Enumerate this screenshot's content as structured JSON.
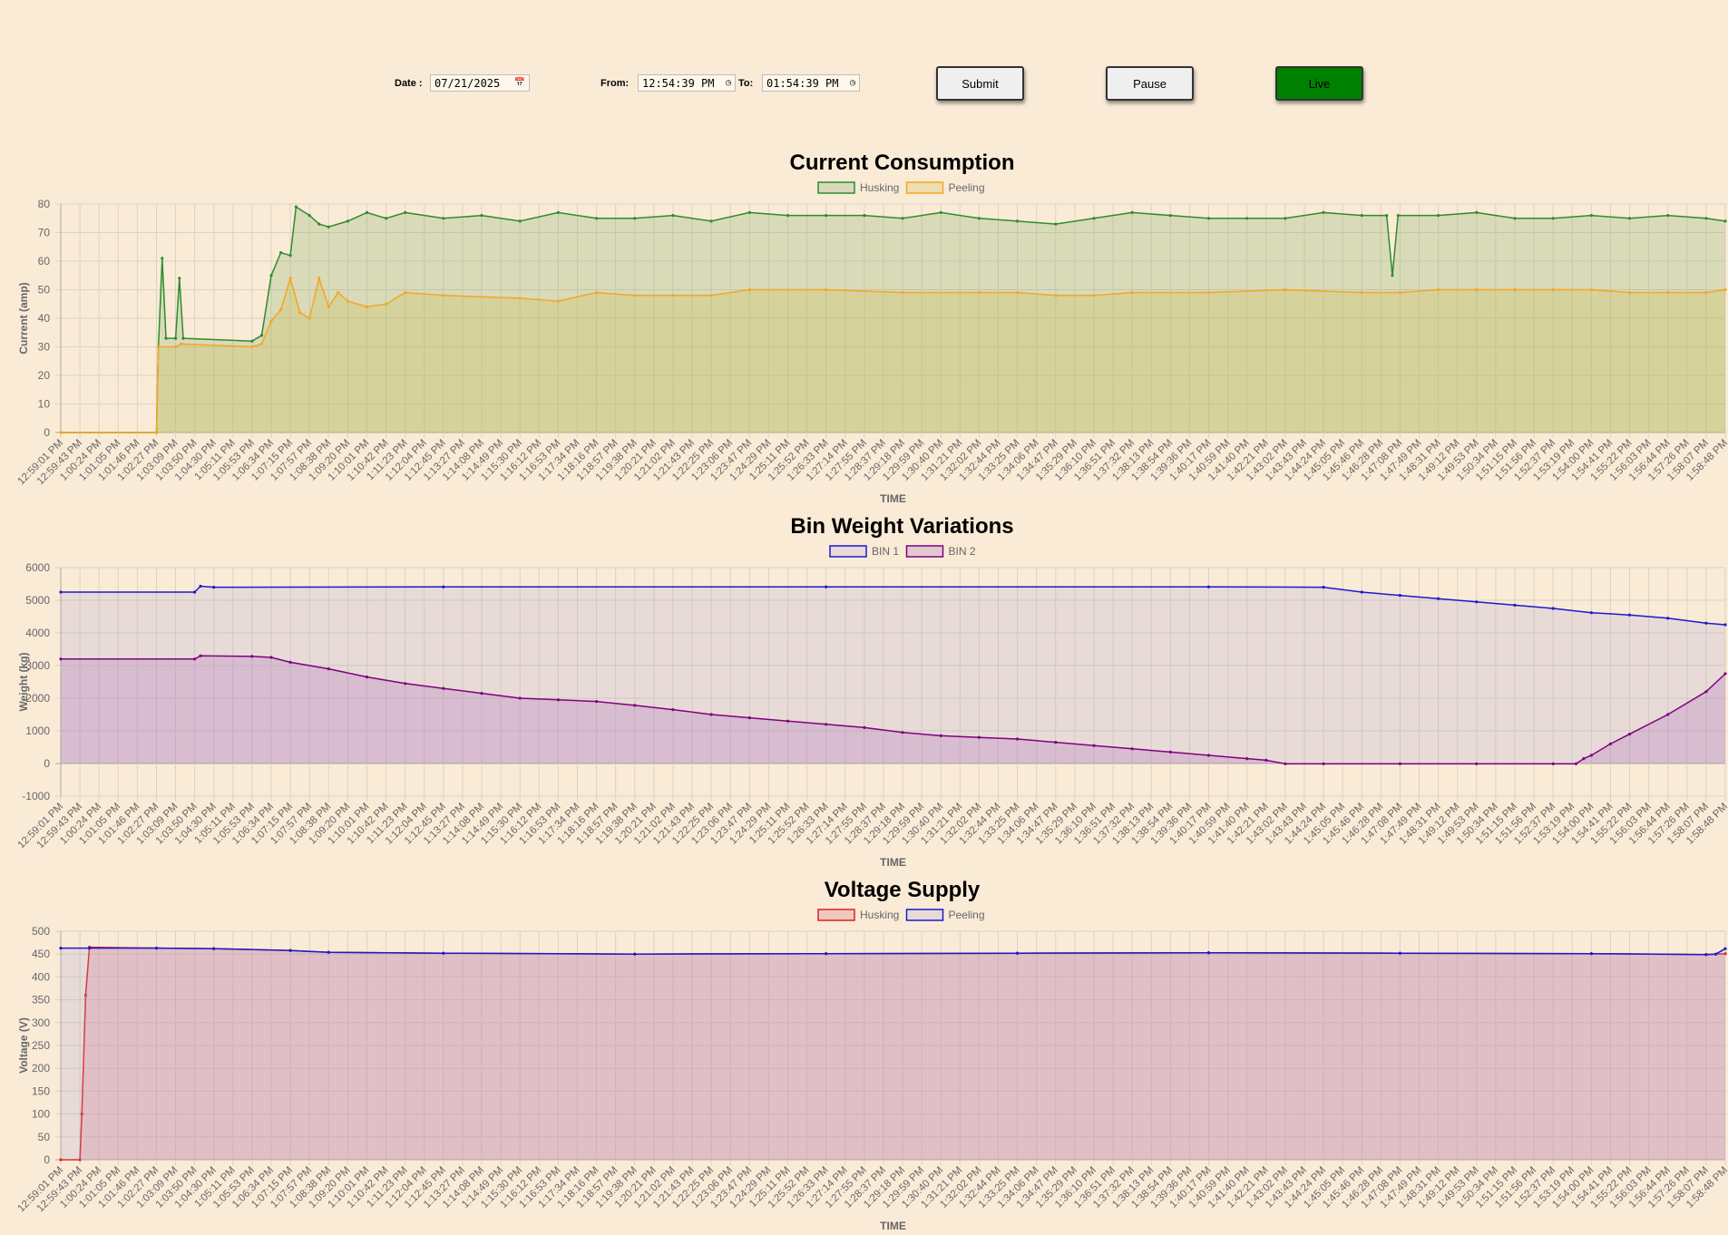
{
  "controls": {
    "date_label": "Date :",
    "date_value": "07/21/2025",
    "from_label": "From:",
    "from_value": "12:54:39 PM",
    "to_label": "To:",
    "to_value": "01:54:39 PM",
    "submit_label": "Submit",
    "pause_label": "Pause",
    "live_label": "Live",
    "live_color": "#008000"
  },
  "time_labels": [
    "12:59:01 PM",
    "12:59:43 PM",
    "1:00:24 PM",
    "1:01:05 PM",
    "1:01:46 PM",
    "1:02:27 PM",
    "1:03:09 PM",
    "1:03:50 PM",
    "1:04:30 PM",
    "1:05:11 PM",
    "1:05:53 PM",
    "1:06:34 PM",
    "1:07:15 PM",
    "1:07:57 PM",
    "1:08:38 PM",
    "1:09:20 PM",
    "1:10:01 PM",
    "1:10:42 PM",
    "1:11:23 PM",
    "1:12:04 PM",
    "1:12:45 PM",
    "1:13:27 PM",
    "1:14:08 PM",
    "1:14:49 PM",
    "1:15:30 PM",
    "1:16:12 PM",
    "1:16:53 PM",
    "1:17:34 PM",
    "1:18:16 PM",
    "1:18:57 PM",
    "1:19:38 PM",
    "1:20:21 PM",
    "1:21:02 PM",
    "1:21:43 PM",
    "1:22:25 PM",
    "1:23:06 PM",
    "1:23:47 PM",
    "1:24:29 PM",
    "1:25:11 PM",
    "1:25:52 PM",
    "1:26:33 PM",
    "1:27:14 PM",
    "1:27:55 PM",
    "1:28:37 PM",
    "1:29:18 PM",
    "1:29:59 PM",
    "1:30:40 PM",
    "1:31:21 PM",
    "1:32:02 PM",
    "1:32:44 PM",
    "1:33:25 PM",
    "1:34:06 PM",
    "1:34:47 PM",
    "1:35:29 PM",
    "1:36:10 PM",
    "1:36:51 PM",
    "1:37:32 PM",
    "1:38:13 PM",
    "1:38:54 PM",
    "1:39:36 PM",
    "1:40:17 PM",
    "1:40:59 PM",
    "1:41:40 PM",
    "1:42:21 PM",
    "1:43:02 PM",
    "1:43:43 PM",
    "1:44:24 PM",
    "1:45:05 PM",
    "1:45:46 PM",
    "1:46:28 PM",
    "1:47:08 PM",
    "1:47:49 PM",
    "1:48:31 PM",
    "1:49:12 PM",
    "1:49:53 PM",
    "1:50:34 PM",
    "1:51:15 PM",
    "1:51:56 PM",
    "1:52:37 PM",
    "1:53:19 PM",
    "1:54:00 PM",
    "1:54:41 PM",
    "1:55:22 PM",
    "1:56:03 PM",
    "1:56:44 PM",
    "1:57:26 PM",
    "1:58:07 PM",
    "1:58:48 PM"
  ],
  "chart_data": [
    {
      "type": "area",
      "title": "Current Consumption",
      "xlabel": "TIME",
      "ylabel": "Current (amp)",
      "ylim": [
        0,
        80
      ],
      "yticks": [
        0,
        10,
        20,
        30,
        40,
        50,
        60,
        70,
        80
      ],
      "grid": true,
      "legend_position": "top-center",
      "series": [
        {
          "name": "Husking",
          "color": "#2e8b2e",
          "fill": "rgba(120,170,90,0.25)",
          "points": [
            [
              0,
              0
            ],
            [
              5,
              0
            ],
            [
              5.1,
              30
            ],
            [
              5.3,
              61
            ],
            [
              5.5,
              33
            ],
            [
              6,
              33
            ],
            [
              6.2,
              54
            ],
            [
              6.4,
              33
            ],
            [
              10,
              32
            ],
            [
              10.5,
              34
            ],
            [
              11,
              55
            ],
            [
              11.5,
              63
            ],
            [
              12,
              62
            ],
            [
              12.3,
              79
            ],
            [
              13,
              76
            ],
            [
              13.5,
              73
            ],
            [
              14,
              72
            ],
            [
              15,
              74
            ],
            [
              16,
              77
            ],
            [
              17,
              75
            ],
            [
              18,
              77
            ],
            [
              20,
              75
            ],
            [
              22,
              76
            ],
            [
              24,
              74
            ],
            [
              26,
              77
            ],
            [
              28,
              75
            ],
            [
              30,
              75
            ],
            [
              32,
              76
            ],
            [
              34,
              74
            ],
            [
              36,
              77
            ],
            [
              38,
              76
            ],
            [
              40,
              76
            ],
            [
              42,
              76
            ],
            [
              44,
              75
            ],
            [
              46,
              77
            ],
            [
              48,
              75
            ],
            [
              50,
              74
            ],
            [
              52,
              73
            ],
            [
              54,
              75
            ],
            [
              56,
              77
            ],
            [
              58,
              76
            ],
            [
              60,
              75
            ],
            [
              62,
              75
            ],
            [
              64,
              75
            ],
            [
              66,
              77
            ],
            [
              68,
              76
            ],
            [
              69.3,
              76
            ],
            [
              69.6,
              55
            ],
            [
              69.9,
              76
            ],
            [
              72,
              76
            ],
            [
              74,
              77
            ],
            [
              76,
              75
            ],
            [
              78,
              75
            ],
            [
              80,
              76
            ],
            [
              82,
              75
            ],
            [
              84,
              76
            ],
            [
              86,
              75
            ],
            [
              87,
              74
            ]
          ]
        },
        {
          "name": "Peeling",
          "color": "#f5a623",
          "fill": "rgba(210,190,90,0.30)",
          "points": [
            [
              0,
              0
            ],
            [
              5,
              0
            ],
            [
              5.1,
              30
            ],
            [
              6,
              30
            ],
            [
              6.3,
              31
            ],
            [
              10,
              30
            ],
            [
              10.5,
              31
            ],
            [
              11,
              39
            ],
            [
              11.5,
              43
            ],
            [
              12,
              54
            ],
            [
              12.5,
              42
            ],
            [
              13,
              40
            ],
            [
              13.5,
              54
            ],
            [
              14,
              44
            ],
            [
              14.5,
              49
            ],
            [
              15,
              46
            ],
            [
              16,
              44
            ],
            [
              17,
              45
            ],
            [
              18,
              49
            ],
            [
              20,
              48
            ],
            [
              24,
              47
            ],
            [
              26,
              46
            ],
            [
              28,
              49
            ],
            [
              30,
              48
            ],
            [
              32,
              48
            ],
            [
              34,
              48
            ],
            [
              36,
              50
            ],
            [
              40,
              50
            ],
            [
              44,
              49
            ],
            [
              48,
              49
            ],
            [
              50,
              49
            ],
            [
              52,
              48
            ],
            [
              54,
              48
            ],
            [
              56,
              49
            ],
            [
              60,
              49
            ],
            [
              64,
              50
            ],
            [
              68,
              49
            ],
            [
              70,
              49
            ],
            [
              72,
              50
            ],
            [
              74,
              50
            ],
            [
              76,
              50
            ],
            [
              78,
              50
            ],
            [
              80,
              50
            ],
            [
              82,
              49
            ],
            [
              84,
              49
            ],
            [
              86,
              49
            ],
            [
              87,
              50
            ]
          ]
        }
      ]
    },
    {
      "type": "area",
      "title": "Bin Weight Variations",
      "xlabel": "TIME",
      "ylabel": "Weight (kg)",
      "ylim": [
        -1000,
        6000
      ],
      "yticks": [
        -1000,
        0,
        1000,
        2000,
        3000,
        4000,
        5000,
        6000
      ],
      "grid": true,
      "legend_position": "top-center",
      "series": [
        {
          "name": "BIN 1",
          "color": "#1a1acc",
          "fill": "rgba(170,160,220,0.22)",
          "points": [
            [
              0,
              5250
            ],
            [
              7,
              5250
            ],
            [
              7.3,
              5430
            ],
            [
              8,
              5400
            ],
            [
              20,
              5410
            ],
            [
              40,
              5410
            ],
            [
              60,
              5410
            ],
            [
              66,
              5400
            ],
            [
              68,
              5250
            ],
            [
              70,
              5150
            ],
            [
              72,
              5050
            ],
            [
              74,
              4950
            ],
            [
              76,
              4850
            ],
            [
              78,
              4750
            ],
            [
              80,
              4620
            ],
            [
              82,
              4550
            ],
            [
              84,
              4450
            ],
            [
              86,
              4300
            ],
            [
              87,
              4250
            ]
          ]
        },
        {
          "name": "BIN 2",
          "color": "#800080",
          "fill": "rgba(180,120,190,0.30)",
          "points": [
            [
              0,
              3200
            ],
            [
              7,
              3200
            ],
            [
              7.3,
              3300
            ],
            [
              10,
              3280
            ],
            [
              11,
              3250
            ],
            [
              12,
              3100
            ],
            [
              14,
              2900
            ],
            [
              16,
              2650
            ],
            [
              18,
              2450
            ],
            [
              20,
              2300
            ],
            [
              22,
              2150
            ],
            [
              24,
              2000
            ],
            [
              26,
              1950
            ],
            [
              28,
              1900
            ],
            [
              30,
              1780
            ],
            [
              32,
              1650
            ],
            [
              34,
              1500
            ],
            [
              36,
              1400
            ],
            [
              38,
              1300
            ],
            [
              40,
              1200
            ],
            [
              42,
              1100
            ],
            [
              44,
              950
            ],
            [
              46,
              850
            ],
            [
              48,
              800
            ],
            [
              50,
              750
            ],
            [
              52,
              650
            ],
            [
              54,
              550
            ],
            [
              56,
              450
            ],
            [
              58,
              350
            ],
            [
              60,
              250
            ],
            [
              62,
              150
            ],
            [
              63,
              100
            ],
            [
              64,
              -10
            ],
            [
              66,
              -10
            ],
            [
              70,
              -10
            ],
            [
              74,
              -10
            ],
            [
              78,
              -10
            ],
            [
              79.2,
              -10
            ],
            [
              79.6,
              150
            ],
            [
              80,
              250
            ],
            [
              81,
              600
            ],
            [
              82,
              900
            ],
            [
              84,
              1500
            ],
            [
              86,
              2200
            ],
            [
              87,
              2750
            ]
          ]
        }
      ]
    },
    {
      "type": "area",
      "title": "Voltage Supply",
      "xlabel": "TIME",
      "ylabel": "Voltage (V)",
      "ylim": [
        0,
        500
      ],
      "yticks": [
        0,
        50,
        100,
        150,
        200,
        250,
        300,
        350,
        400,
        450,
        500
      ],
      "grid": true,
      "legend_position": "top-center",
      "series": [
        {
          "name": "Husking",
          "color": "#e02020",
          "fill": "rgba(220,120,140,0.30)",
          "points": [
            [
              0,
              0
            ],
            [
              1,
              0
            ],
            [
              1.1,
              100
            ],
            [
              1.3,
              360
            ],
            [
              1.5,
              465
            ],
            [
              5,
              463
            ],
            [
              8,
              462
            ],
            [
              12,
              458
            ],
            [
              14,
              454
            ],
            [
              20,
              452
            ],
            [
              30,
              450
            ],
            [
              40,
              451
            ],
            [
              50,
              452
            ],
            [
              60,
              453
            ],
            [
              70,
              452
            ],
            [
              80,
              451
            ],
            [
              86,
              449
            ],
            [
              87,
              451
            ]
          ]
        },
        {
          "name": "Peeling",
          "color": "#1a1acc",
          "fill": "rgba(170,160,220,0.22)",
          "points": [
            [
              0,
              463
            ],
            [
              1.5,
              463
            ],
            [
              5,
              463
            ],
            [
              8,
              462
            ],
            [
              12,
              458
            ],
            [
              14,
              454
            ],
            [
              20,
              452
            ],
            [
              30,
              450
            ],
            [
              40,
              451
            ],
            [
              50,
              452
            ],
            [
              60,
              453
            ],
            [
              70,
              452
            ],
            [
              80,
              451
            ],
            [
              86,
              449
            ],
            [
              86.5,
              450
            ],
            [
              87,
              462
            ]
          ]
        }
      ]
    }
  ]
}
